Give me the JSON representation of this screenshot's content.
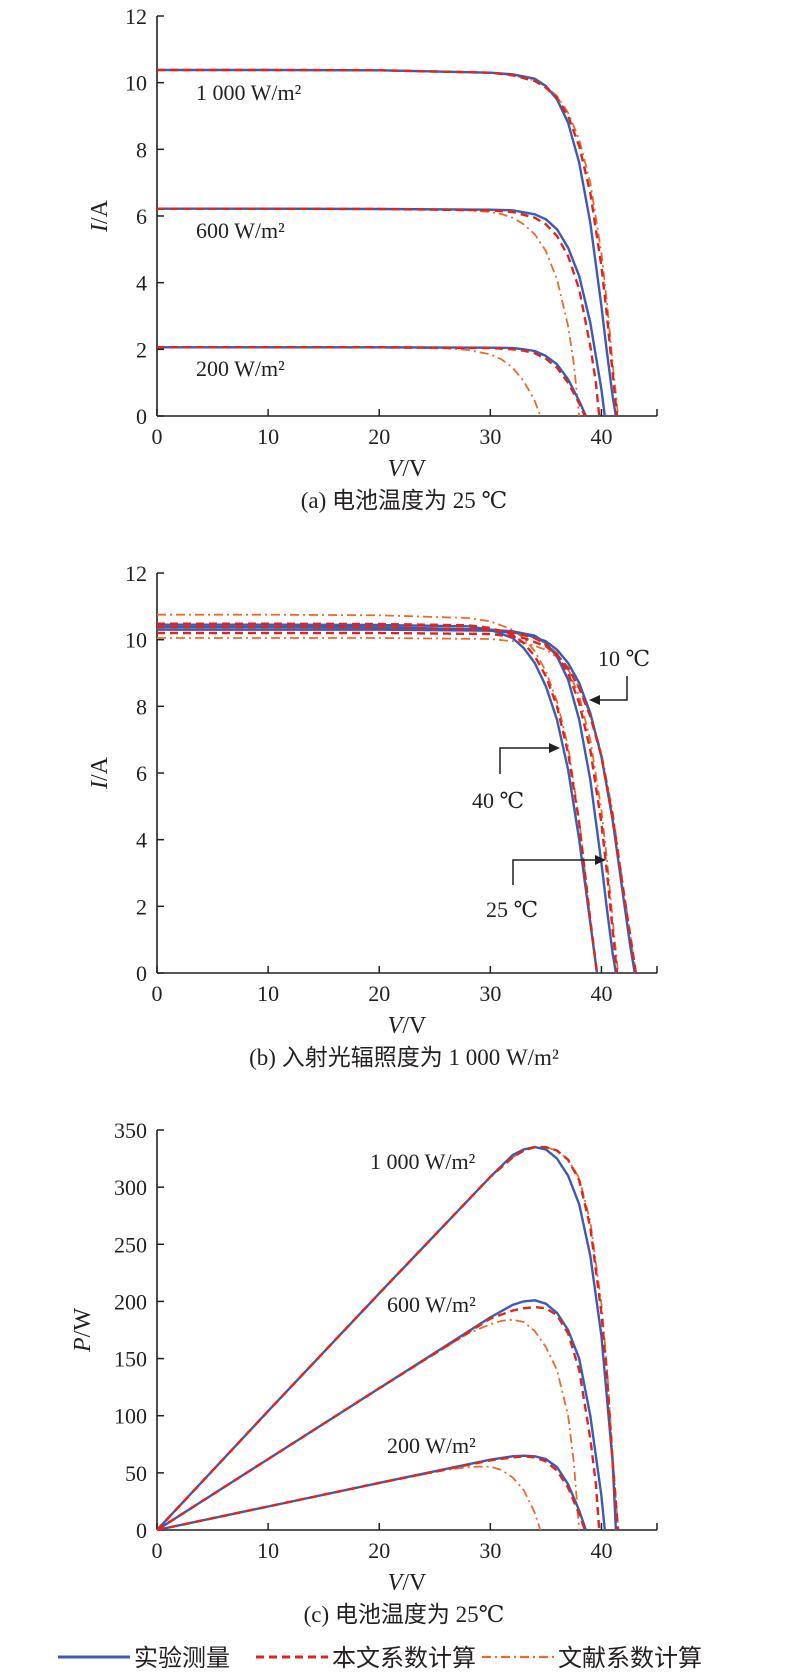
{
  "colors": {
    "measured": "#3a5bb8",
    "this_paper": "#e0251c",
    "literature": "#ef6a2a",
    "axis": "#231f20"
  },
  "legend": {
    "measured": "实验测量",
    "this_paper": "本文系数计算",
    "literature": "文献系数计算"
  },
  "chart_data": [
    {
      "type": "line",
      "caption": "(a) 电池温度为 25 ℃",
      "xlabel_var": "V",
      "xlabel_unit": "/V",
      "ylabel_var": "I",
      "ylabel_unit": "/A",
      "xlim": [
        0,
        45
      ],
      "ylim": [
        0,
        12
      ],
      "xticks": [
        0,
        10,
        20,
        30,
        40
      ],
      "yticks": [
        0,
        2,
        4,
        6,
        8,
        10,
        12
      ],
      "annotations": [
        "1 000 W/m²",
        "600 W/m²",
        "200 W/m²"
      ],
      "series": [
        {
          "group": "1 000 W/m²",
          "method": "measured",
          "x": [
            0,
            10,
            20,
            30,
            32,
            34,
            35,
            36,
            37,
            38,
            39,
            40,
            40.5,
            41,
            41.3
          ],
          "y": [
            10.38,
            10.38,
            10.37,
            10.3,
            10.25,
            10.12,
            9.9,
            9.5,
            8.8,
            7.6,
            5.8,
            3.3,
            1.9,
            0.6,
            0
          ]
        },
        {
          "group": "1 000 W/m²",
          "method": "this_paper",
          "x": [
            0,
            10,
            20,
            30,
            32,
            34,
            35,
            36,
            37,
            38,
            39,
            40,
            40.5,
            41,
            41.4
          ],
          "y": [
            10.38,
            10.38,
            10.37,
            10.3,
            10.22,
            10.05,
            9.85,
            9.55,
            9.0,
            8.1,
            6.7,
            4.5,
            3.0,
            1.3,
            0
          ]
        },
        {
          "group": "1 000 W/m²",
          "method": "literature",
          "x": [
            0,
            10,
            20,
            30,
            32,
            34,
            35,
            36,
            37,
            38,
            39,
            40,
            40.5,
            41,
            41.5
          ],
          "y": [
            10.38,
            10.38,
            10.37,
            10.3,
            10.22,
            10.07,
            9.88,
            9.6,
            9.1,
            8.3,
            7.0,
            4.9,
            3.4,
            1.6,
            0
          ]
        },
        {
          "group": "600 W/m²",
          "method": "measured",
          "x": [
            0,
            10,
            20,
            30,
            32,
            34,
            35,
            36,
            37,
            38,
            39,
            40,
            40.3
          ],
          "y": [
            6.22,
            6.22,
            6.21,
            6.19,
            6.17,
            6.05,
            5.9,
            5.6,
            5.05,
            4.2,
            2.8,
            0.8,
            0
          ]
        },
        {
          "group": "600 W/m²",
          "method": "this_paper",
          "x": [
            0,
            10,
            20,
            30,
            32,
            34,
            35,
            36,
            37,
            38,
            39,
            39.5,
            39.8
          ],
          "y": [
            6.22,
            6.22,
            6.21,
            6.17,
            6.12,
            5.95,
            5.75,
            5.4,
            4.8,
            3.8,
            2.1,
            1.0,
            0
          ]
        },
        {
          "group": "600 W/m²",
          "method": "literature",
          "x": [
            0,
            10,
            20,
            28,
            30,
            31,
            32,
            33,
            34,
            35,
            36,
            37,
            37.5,
            38
          ],
          "y": [
            6.22,
            6.22,
            6.21,
            6.17,
            6.12,
            6.06,
            5.95,
            5.75,
            5.45,
            4.95,
            4.1,
            2.7,
            1.6,
            0
          ]
        },
        {
          "group": "200 W/m²",
          "method": "measured",
          "x": [
            0,
            10,
            20,
            30,
            32,
            33,
            34,
            35,
            36,
            37,
            38,
            38.6
          ],
          "y": [
            2.06,
            2.06,
            2.06,
            2.05,
            2.04,
            2.0,
            1.95,
            1.8,
            1.55,
            1.1,
            0.45,
            0
          ]
        },
        {
          "group": "200 W/m²",
          "method": "this_paper",
          "x": [
            0,
            10,
            20,
            30,
            32,
            33,
            34,
            35,
            36,
            37,
            38,
            38.5
          ],
          "y": [
            2.06,
            2.06,
            2.06,
            2.04,
            2.0,
            1.96,
            1.88,
            1.72,
            1.45,
            1.0,
            0.38,
            0
          ]
        },
        {
          "group": "200 W/m²",
          "method": "literature",
          "x": [
            0,
            10,
            20,
            26,
            28,
            30,
            31,
            32,
            33,
            34,
            34.5
          ],
          "y": [
            2.06,
            2.06,
            2.05,
            2.03,
            1.98,
            1.85,
            1.7,
            1.45,
            1.05,
            0.45,
            0
          ]
        }
      ]
    },
    {
      "type": "line",
      "caption": "(b) 入射光辐照度为 1 000 W/m²",
      "xlabel_var": "V",
      "xlabel_unit": "/V",
      "ylabel_var": "I",
      "ylabel_unit": "/A",
      "xlim": [
        0,
        45
      ],
      "ylim": [
        0,
        12
      ],
      "xticks": [
        0,
        10,
        20,
        30,
        40
      ],
      "yticks": [
        0,
        2,
        4,
        6,
        8,
        10,
        12
      ],
      "annotations": [
        "10 ℃",
        "40 ℃",
        "25 ℃"
      ],
      "series": [
        {
          "group": "10 ℃",
          "method": "measured",
          "x": [
            0,
            10,
            20,
            30,
            33,
            35,
            36,
            37,
            38,
            39,
            40,
            41,
            42,
            42.6,
            43.0
          ],
          "y": [
            10.3,
            10.3,
            10.3,
            10.27,
            10.18,
            9.95,
            9.7,
            9.3,
            8.7,
            7.8,
            6.5,
            4.6,
            2.2,
            0.8,
            0
          ]
        },
        {
          "group": "10 ℃",
          "method": "this_paper",
          "x": [
            0,
            10,
            20,
            30,
            33,
            35,
            36,
            37,
            38,
            39,
            40,
            41,
            42,
            42.7,
            43.1
          ],
          "y": [
            10.2,
            10.2,
            10.2,
            10.17,
            10.05,
            9.8,
            9.55,
            9.15,
            8.55,
            7.7,
            6.5,
            4.7,
            2.4,
            0.9,
            0
          ]
        },
        {
          "group": "10 ℃",
          "method": "literature",
          "x": [
            0,
            10,
            20,
            30,
            33,
            35,
            36,
            37,
            38,
            39,
            40,
            41,
            42,
            42.7,
            43.1
          ],
          "y": [
            10.05,
            10.05,
            10.05,
            10.02,
            9.92,
            9.7,
            9.48,
            9.1,
            8.55,
            7.75,
            6.6,
            4.85,
            2.5,
            0.9,
            0
          ]
        },
        {
          "group": "25 ℃",
          "method": "measured",
          "x": [
            0,
            10,
            20,
            30,
            32,
            34,
            35,
            36,
            37,
            38,
            39,
            40,
            40.5,
            41,
            41.3
          ],
          "y": [
            10.38,
            10.38,
            10.37,
            10.3,
            10.25,
            10.12,
            9.9,
            9.5,
            8.8,
            7.6,
            5.8,
            3.3,
            1.9,
            0.6,
            0
          ]
        },
        {
          "group": "25 ℃",
          "method": "this_paper",
          "x": [
            0,
            10,
            20,
            30,
            32,
            34,
            35,
            36,
            37,
            38,
            39,
            40,
            40.5,
            41,
            41.4
          ],
          "y": [
            10.38,
            10.38,
            10.37,
            10.3,
            10.22,
            10.05,
            9.85,
            9.55,
            9.0,
            8.1,
            6.7,
            4.5,
            3.0,
            1.3,
            0
          ]
        },
        {
          "group": "25 ℃",
          "method": "literature",
          "x": [
            0,
            10,
            20,
            30,
            32,
            34,
            35,
            36,
            37,
            38,
            39,
            40,
            40.5,
            41,
            41.5
          ],
          "y": [
            10.38,
            10.38,
            10.37,
            10.3,
            10.22,
            10.07,
            9.88,
            9.6,
            9.1,
            8.3,
            7.0,
            4.9,
            3.4,
            1.6,
            0
          ]
        },
        {
          "group": "40 ℃",
          "method": "measured",
          "x": [
            0,
            10,
            20,
            28,
            30,
            32,
            33,
            34,
            35,
            36,
            37,
            38,
            39,
            39.6
          ],
          "y": [
            10.45,
            10.45,
            10.44,
            10.4,
            10.3,
            10.05,
            9.75,
            9.3,
            8.6,
            7.6,
            6.1,
            4.0,
            1.5,
            0
          ]
        },
        {
          "group": "40 ℃",
          "method": "this_paper",
          "x": [
            0,
            10,
            20,
            28,
            30,
            32,
            33,
            34,
            35,
            36,
            37,
            38,
            39,
            39.6
          ],
          "y": [
            10.48,
            10.48,
            10.47,
            10.43,
            10.35,
            10.15,
            9.9,
            9.5,
            8.9,
            8.0,
            6.6,
            4.5,
            1.6,
            0
          ]
        },
        {
          "group": "40 ℃",
          "method": "literature",
          "x": [
            0,
            10,
            20,
            28,
            30,
            32,
            33,
            34,
            35,
            36,
            37,
            38,
            39,
            39.6
          ],
          "y": [
            10.75,
            10.75,
            10.73,
            10.65,
            10.55,
            10.3,
            10.05,
            9.65,
            9.05,
            8.15,
            6.8,
            4.6,
            1.6,
            0
          ]
        }
      ]
    },
    {
      "type": "line",
      "caption": "(c) 电池温度为 25℃",
      "xlabel_var": "V",
      "xlabel_unit": "/V",
      "ylabel_var": "P",
      "ylabel_unit": "/W",
      "xlim": [
        0,
        45
      ],
      "ylim": [
        0,
        350
      ],
      "xticks": [
        0,
        10,
        20,
        30,
        40
      ],
      "yticks": [
        0,
        50,
        100,
        150,
        200,
        250,
        300,
        350
      ],
      "annotations": [
        "1 000 W/m²",
        "600 W/m²",
        "200 W/m²"
      ],
      "series": [
        {
          "group": "1 000 W/m²",
          "method": "measured",
          "x": [
            0,
            10,
            20,
            30,
            32,
            33,
            34,
            35,
            36,
            37,
            38,
            39,
            40,
            41,
            41.3
          ],
          "y": [
            0,
            104,
            207,
            309,
            328,
            333,
            335,
            333,
            325,
            310,
            285,
            240,
            170,
            60,
            0
          ]
        },
        {
          "group": "1 000 W/m²",
          "method": "this_paper",
          "x": [
            0,
            10,
            20,
            30,
            32,
            33,
            34,
            35,
            36,
            37,
            38,
            39,
            40,
            40.5,
            41,
            41.5
          ],
          "y": [
            0,
            104,
            207,
            309,
            326,
            332,
            335,
            335,
            332,
            324,
            306,
            265,
            190,
            135,
            60,
            0
          ]
        },
        {
          "group": "1 000 W/m²",
          "method": "literature",
          "x": [
            0,
            10,
            20,
            30,
            32,
            33,
            34,
            35,
            36,
            37,
            38,
            39,
            40,
            40.5,
            41,
            41.5
          ],
          "y": [
            0,
            104,
            207,
            309,
            326,
            332,
            335,
            335,
            332,
            324,
            308,
            270,
            198,
            142,
            66,
            0
          ]
        },
        {
          "group": "600 W/m²",
          "method": "measured",
          "x": [
            0,
            10,
            20,
            30,
            32,
            33,
            34,
            35,
            36,
            37,
            38,
            39,
            40,
            40.3
          ],
          "y": [
            0,
            62,
            124,
            186,
            197,
            200,
            201,
            198,
            190,
            175,
            150,
            100,
            30,
            0
          ]
        },
        {
          "group": "600 W/m²",
          "method": "this_paper",
          "x": [
            0,
            10,
            20,
            30,
            32,
            33,
            34,
            35,
            36,
            37,
            38,
            39,
            39.5,
            39.8
          ],
          "y": [
            0,
            62,
            124,
            185,
            192,
            194,
            195,
            194,
            188,
            172,
            140,
            80,
            40,
            0
          ]
        },
        {
          "group": "600 W/m²",
          "method": "literature",
          "x": [
            0,
            10,
            20,
            28,
            30,
            31,
            32,
            33,
            34,
            35,
            36,
            37,
            37.5,
            38
          ],
          "y": [
            0,
            62,
            124,
            172,
            180,
            183,
            184,
            182,
            174,
            160,
            140,
            100,
            60,
            0
          ]
        },
        {
          "group": "200 W/m²",
          "method": "measured",
          "x": [
            0,
            10,
            20,
            30,
            32,
            33,
            34,
            35,
            36,
            37,
            38,
            38.6
          ],
          "y": [
            0,
            20.6,
            41.2,
            61.5,
            64.5,
            65,
            64.5,
            62,
            55,
            40,
            17,
            0
          ]
        },
        {
          "group": "200 W/m²",
          "method": "this_paper",
          "x": [
            0,
            10,
            20,
            30,
            32,
            33,
            34,
            35,
            36,
            37,
            38,
            38.5
          ],
          "y": [
            0,
            20.6,
            41.2,
            61,
            63.5,
            64.5,
            63.5,
            60,
            52,
            37,
            14,
            0
          ]
        },
        {
          "group": "200 W/m²",
          "method": "literature",
          "x": [
            0,
            10,
            20,
            26,
            28,
            29,
            30,
            31,
            32,
            33,
            34,
            34.5
          ],
          "y": [
            0,
            20.6,
            41,
            52.5,
            55,
            55.5,
            55.5,
            52.5,
            46,
            35,
            15,
            0
          ]
        }
      ]
    }
  ]
}
